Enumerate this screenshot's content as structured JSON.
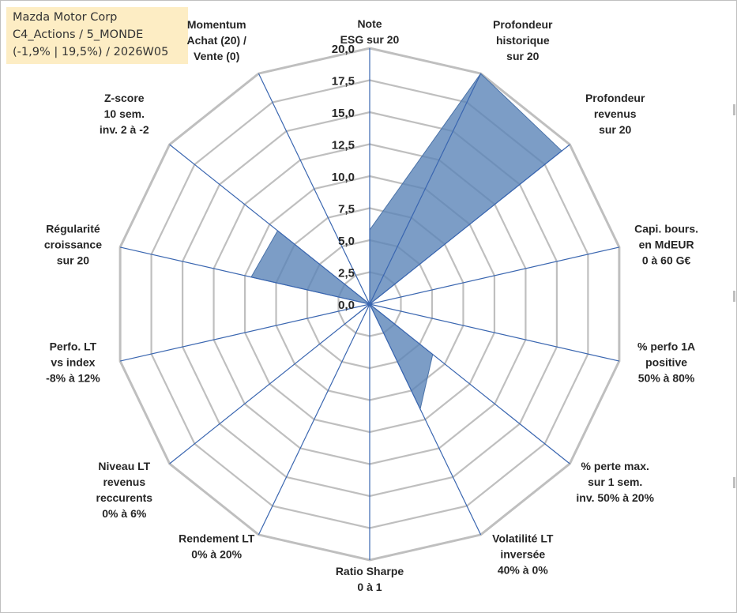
{
  "info_box": {
    "line1": "Mazda Motor Corp",
    "line2": "C4_Actions / 5_MONDE",
    "line3": "(-1,9% | 19,5%) / 2026W05"
  },
  "chart_data": {
    "type": "radar",
    "title": "",
    "range": [
      0,
      20
    ],
    "tick_step": 2.5,
    "ticks": [
      "0,0",
      "2,5",
      "5,0",
      "7,5",
      "10,0",
      "12,5",
      "15,0",
      "17,5",
      "20,0"
    ],
    "axes": [
      {
        "label": [
          "Note",
          "ESG sur 20"
        ],
        "value": 5.8
      },
      {
        "label": [
          "Profondeur",
          "historique",
          "sur 20"
        ],
        "value": 20.0
      },
      {
        "label": [
          "Profondeur",
          "revenus",
          "sur 20"
        ],
        "value": 19.2
      },
      {
        "label": [
          "Capi. bours.",
          "en MdEUR",
          "0 à 60 G€"
        ],
        "value": 0.0
      },
      {
        "label": [
          "% perfo 1A",
          "positive",
          "50% à 80%"
        ],
        "value": 0.0
      },
      {
        "label": [
          "% perte max.",
          "sur 1 sem.",
          "inv. 50% à 20%"
        ],
        "value": 6.3
      },
      {
        "label": [
          "Volatilité LT",
          "inversée",
          "40% à 0%"
        ],
        "value": 9.1
      },
      {
        "label": [
          "Ratio Sharpe",
          "0 à 1"
        ],
        "value": 0.0
      },
      {
        "label": [
          "Rendement LT",
          "0% à 20%"
        ],
        "value": 0.0
      },
      {
        "label": [
          "Niveau LT",
          "revenus",
          "reccurents",
          "0% à 6%"
        ],
        "value": 2.0
      },
      {
        "label": [
          "Perfo. LT",
          "vs index",
          "-8% à 12%"
        ],
        "value": 0.0
      },
      {
        "label": [
          "Régularité",
          "croissance",
          "sur 20"
        ],
        "value": 9.5
      },
      {
        "label": [
          "Z-score",
          "10 sem.",
          "inv. 2 à -2"
        ],
        "value": 9.2
      },
      {
        "label": [
          "Momentum",
          "Achat (20) /",
          "Vente (0)"
        ],
        "value": 0.0
      }
    ],
    "series": [
      {
        "name": "Mazda Motor Corp",
        "color": "#5b84b8",
        "fill_opacity": 0.8
      }
    ],
    "grid_color": "#bfbfbf",
    "spoke_color": "#3a66b0"
  }
}
